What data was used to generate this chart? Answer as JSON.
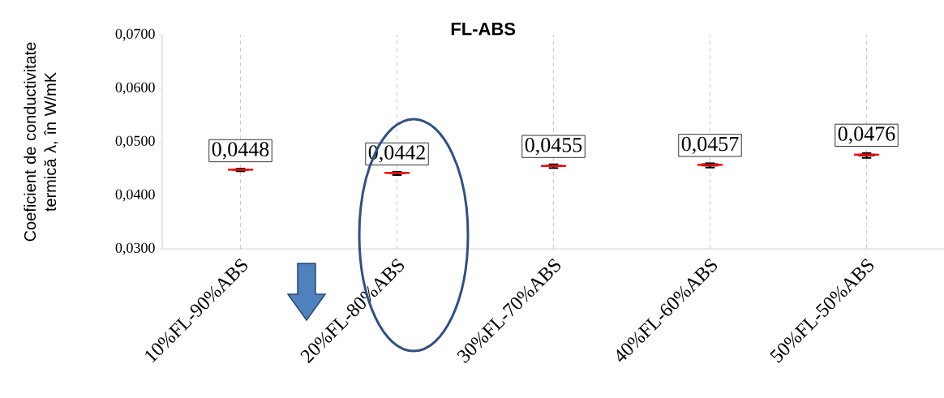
{
  "chart_data": {
    "type": "box",
    "title": "FL-ABS",
    "ylabel": "Coeficient de conductivitate termică λ, în W/mK",
    "categories": [
      "10%FL-90%ABS",
      "20%FL-80%ABS",
      "30%FL-70%ABS",
      "40%FL-60%ABS",
      "50%FL-50%ABS"
    ],
    "boxes": [
      {
        "low": 0.0445,
        "q1": 0.0447,
        "median": 0.0448,
        "q3": 0.0449,
        "high": 0.045
      },
      {
        "low": 0.0438,
        "q1": 0.0441,
        "median": 0.0442,
        "q3": 0.0443,
        "high": 0.0444
      },
      {
        "low": 0.0451,
        "q1": 0.0454,
        "median": 0.0455,
        "q3": 0.0456,
        "high": 0.0458
      },
      {
        "low": 0.0452,
        "q1": 0.0455,
        "median": 0.0457,
        "q3": 0.0459,
        "high": 0.046
      },
      {
        "low": 0.047,
        "q1": 0.0474,
        "median": 0.0476,
        "q3": 0.0477,
        "high": 0.0479
      }
    ],
    "value_labels": [
      "0,0448",
      "0,0442",
      "0,0455",
      "0,0457",
      "0,0476"
    ],
    "ylim": [
      0.03,
      0.07
    ],
    "yticks": [
      {
        "value": 0.03,
        "label": "0,0300"
      },
      {
        "value": 0.04,
        "label": "0,0400"
      },
      {
        "value": 0.05,
        "label": "0,0500"
      },
      {
        "value": 0.06,
        "label": "0,0600"
      },
      {
        "value": 0.07,
        "label": "0,0700"
      }
    ],
    "grid": "x"
  }
}
